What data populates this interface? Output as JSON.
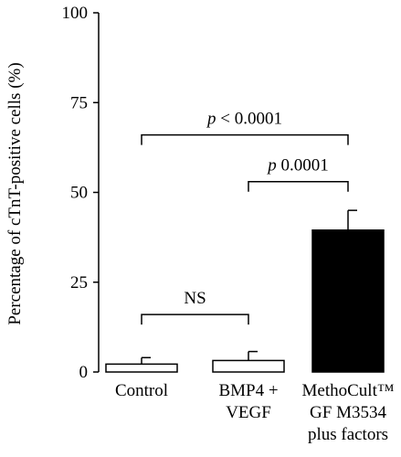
{
  "chart_data": {
    "type": "bar",
    "title": "",
    "xlabel": "",
    "ylabel": "Percentage of cTnT-positive cells (%)",
    "ylim": [
      0,
      100
    ],
    "yticks": [
      "0",
      "25",
      "50",
      "75",
      "100"
    ],
    "grid": false,
    "categories": [
      [
        "Control"
      ],
      [
        "BMP4 +",
        "VEGF"
      ],
      [
        "MethoCult™",
        "GF M3534",
        "plus factors"
      ]
    ],
    "values": [
      2.2,
      3.2,
      39.5
    ],
    "errors": [
      1.8,
      2.5,
      5.5
    ],
    "bar_colors": [
      "#ffffff",
      "#ffffff",
      "#000000"
    ],
    "significance": [
      {
        "from": 0,
        "to": 1,
        "level": 16,
        "label": "NS",
        "italic_prefix": "",
        "rest": "NS"
      },
      {
        "from": 0,
        "to": 2,
        "level": 66,
        "label": "p < 0.0001",
        "italic_prefix": "p",
        "rest": " < 0.0001"
      },
      {
        "from": 1,
        "to": 2,
        "level": 53,
        "label": "p 0.0001",
        "italic_prefix": "p",
        "rest": " 0.0001"
      }
    ]
  }
}
